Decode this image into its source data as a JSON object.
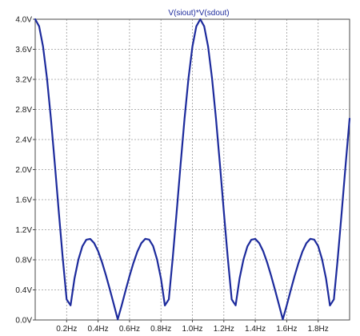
{
  "chart_data": {
    "type": "line",
    "title": "V(siout)*V(sdout)",
    "xlabel": "",
    "ylabel": "",
    "xlim": [
      0,
      2.0
    ],
    "ylim": [
      0,
      4.0
    ],
    "grid": true,
    "x_ticks": [
      {
        "value": 0.2,
        "label": "0.2Hz"
      },
      {
        "value": 0.4,
        "label": "0.4Hz"
      },
      {
        "value": 0.6,
        "label": "0.6Hz"
      },
      {
        "value": 0.8,
        "label": "0.8Hz"
      },
      {
        "value": 1.0,
        "label": "1.0Hz"
      },
      {
        "value": 1.2,
        "label": "1.2Hz"
      },
      {
        "value": 1.4,
        "label": "1.4Hz"
      },
      {
        "value": 1.6,
        "label": "1.6Hz"
      },
      {
        "value": 1.8,
        "label": "1.8Hz"
      }
    ],
    "y_ticks": [
      {
        "value": 0.0,
        "label": "0.0V"
      },
      {
        "value": 0.4,
        "label": "0.4V"
      },
      {
        "value": 0.8,
        "label": "0.8V"
      },
      {
        "value": 1.2,
        "label": "1.2V"
      },
      {
        "value": 1.6,
        "label": "1.6V"
      },
      {
        "value": 2.0,
        "label": "2.0V"
      },
      {
        "value": 2.4,
        "label": "2.4V"
      },
      {
        "value": 2.8,
        "label": "2.8V"
      },
      {
        "value": 3.2,
        "label": "3.2V"
      },
      {
        "value": 3.6,
        "label": "3.6V"
      },
      {
        "value": 4.0,
        "label": "4.0V"
      }
    ],
    "series": [
      {
        "name": "V(siout)*V(sdout)",
        "color": "#1c2a9c",
        "x": [
          0.0,
          0.025,
          0.05,
          0.075,
          0.1,
          0.125,
          0.15,
          0.175,
          0.2,
          0.225,
          0.25,
          0.275,
          0.3,
          0.325,
          0.35,
          0.375,
          0.4,
          0.425,
          0.45,
          0.475,
          0.5,
          0.525,
          0.55,
          0.575,
          0.6,
          0.625,
          0.65,
          0.675,
          0.7,
          0.725,
          0.75,
          0.775,
          0.8,
          0.825,
          0.85,
          0.875,
          0.9,
          0.925,
          0.95,
          0.975,
          1.0,
          1.025,
          1.05,
          1.075,
          1.1,
          1.125,
          1.15,
          1.175,
          1.2,
          1.225,
          1.25,
          1.275,
          1.3,
          1.325,
          1.35,
          1.375,
          1.4,
          1.425,
          1.45,
          1.475,
          1.5,
          1.525,
          1.55,
          1.575,
          1.6,
          1.625,
          1.65,
          1.675,
          1.7,
          1.725,
          1.75,
          1.775,
          1.8,
          1.825,
          1.85,
          1.875,
          1.9,
          1.925,
          1.95,
          1.975,
          2.0
        ],
        "values": [
          4.0,
          3.906,
          3.635,
          3.213,
          2.677,
          2.071,
          1.44,
          0.828,
          0.273,
          0.194,
          0.552,
          0.805,
          0.98,
          1.067,
          1.078,
          1.023,
          0.916,
          0.768,
          0.594,
          0.405,
          0.208,
          0.008,
          0.193,
          0.392,
          0.583,
          0.759,
          0.91,
          1.021,
          1.079,
          1.069,
          0.983,
          0.806,
          0.551,
          0.193,
          0.274,
          0.828,
          1.44,
          2.071,
          2.677,
          3.213,
          3.635,
          3.906,
          4.0,
          3.906,
          3.635,
          3.213,
          2.677,
          2.071,
          1.44,
          0.828,
          0.273,
          0.194,
          0.552,
          0.805,
          0.98,
          1.067,
          1.078,
          1.023,
          0.916,
          0.768,
          0.594,
          0.405,
          0.208,
          0.008,
          0.193,
          0.392,
          0.583,
          0.759,
          0.91,
          1.021,
          1.079,
          1.069,
          0.983,
          0.806,
          0.551,
          0.193,
          0.274,
          0.828,
          1.44,
          2.071,
          2.677
        ]
      }
    ]
  }
}
